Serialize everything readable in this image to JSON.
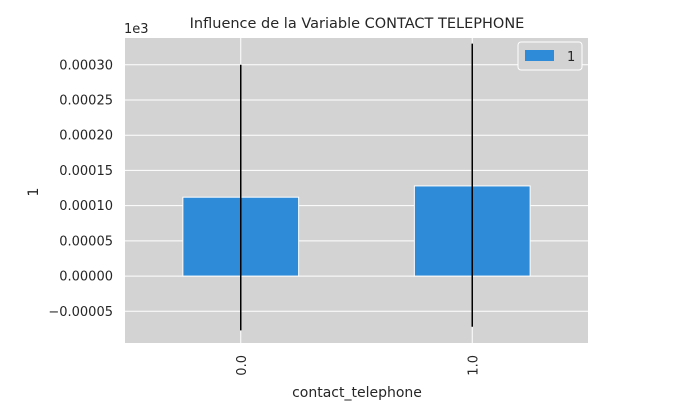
{
  "chart_data": {
    "type": "bar",
    "title": "Influence de la Variable CONTACT TELEPHONE",
    "xlabel": "contact_telephone",
    "ylabel": "1",
    "offset_text": "1e3",
    "categories": [
      "0.0",
      "1.0"
    ],
    "series": [
      {
        "name": "1",
        "color": "#2e8bd8",
        "values": [
          0.000112,
          0.000128
        ],
        "error_low": [
          -7.7e-05,
          -7.2e-05
        ],
        "error_high": [
          0.0003,
          0.00033
        ]
      }
    ],
    "ylim": [
      -9.5e-05,
      0.000338
    ],
    "yticks": [
      -5e-05,
      0.0,
      5e-05,
      0.0001,
      0.00015,
      0.0002,
      0.00025,
      0.0003
    ],
    "ytick_labels": [
      "−0.00005",
      "0.00000",
      "0.00005",
      "0.00010",
      "0.00015",
      "0.00020",
      "0.00025",
      "0.00030"
    ],
    "grid": true,
    "legend_position": "top-right",
    "plot_background": "#d3d3d3",
    "grid_color": "#ffffff"
  }
}
